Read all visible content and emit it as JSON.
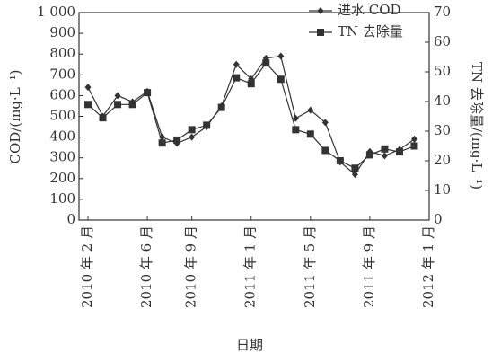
{
  "chart_data": {
    "type": "line",
    "x_label": "日期",
    "y_label": "COD/(mg·L⁻¹)",
    "y2_label": "TN 去除量/(mg·L⁻¹)",
    "categories": [
      "2010 年 2 月",
      null,
      null,
      null,
      "2010 年 6 月",
      null,
      null,
      "2010 年 9 月",
      null,
      null,
      null,
      "2011 年 1 月",
      null,
      null,
      null,
      "2011 年 5 月",
      null,
      null,
      null,
      "2011 年 9 月",
      null,
      null,
      null,
      "2012 年 1 月"
    ],
    "series": [
      {
        "name": "进水 COD",
        "color": "#333333",
        "marker": "diamond",
        "values": [
          640,
          500,
          600,
          570,
          620,
          400,
          370,
          400,
          450,
          550,
          750,
          680,
          780,
          790,
          490,
          530,
          470,
          280,
          220,
          330,
          310,
          340,
          390,
          null
        ]
      },
      {
        "name": "TN 去除量",
        "color": "#333333",
        "marker": "square",
        "axis": "y2",
        "values": [
          39,
          34.5,
          39,
          39,
          43,
          26,
          27,
          30.5,
          32,
          38,
          48,
          46,
          53,
          47.5,
          30.5,
          29,
          23.5,
          20,
          17.5,
          22,
          24,
          23,
          25,
          null
        ]
      }
    ],
    "ylim": [
      0,
      1000
    ],
    "yticks": [
      0,
      100,
      200,
      300,
      400,
      500,
      600,
      700,
      800,
      900,
      {
        "value": 1000,
        "label": "1 000"
      }
    ],
    "y2lim": [
      0,
      70
    ],
    "y2ticks": [
      0,
      10,
      20,
      30,
      40,
      50,
      60,
      70
    ],
    "legend": "top-right"
  }
}
